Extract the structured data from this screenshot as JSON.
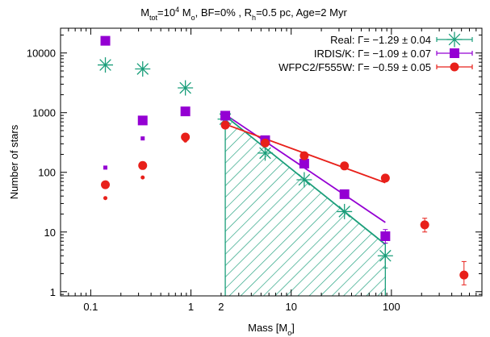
{
  "chart_data": {
    "type": "scatter",
    "title": {
      "parts": [
        {
          "text": "M"
        },
        {
          "text": "tot",
          "sub": true
        },
        {
          "text": "=10"
        },
        {
          "text": "4",
          "sup": true
        },
        {
          "text": " M"
        },
        {
          "text": "o",
          "sub": true
        },
        {
          "text": ", BF=0% , R"
        },
        {
          "text": "h",
          "sub": true
        },
        {
          "text": "=0.5 pc, Age=2 Myr"
        }
      ]
    },
    "xlabel": {
      "parts": [
        {
          "text": "Mass [M"
        },
        {
          "text": "o",
          "sub": true
        },
        {
          "text": "]"
        }
      ]
    },
    "ylabel": "Number of stars",
    "x_scale": "log",
    "y_scale": "log",
    "xlim": [
      0.05,
      800
    ],
    "ylim": [
      0.85,
      26000
    ],
    "x_ticks": [
      {
        "value": 0.1,
        "label": "0.1"
      },
      {
        "value": 1,
        "label": "1"
      },
      {
        "value": 2,
        "label": "2"
      },
      {
        "value": 10,
        "label": "10"
      },
      {
        "value": 100,
        "label": "100"
      }
    ],
    "y_ticks": [
      {
        "value": 1,
        "label": "1"
      },
      {
        "value": 10,
        "label": "10"
      },
      {
        "value": 100,
        "label": "100"
      },
      {
        "value": 1000,
        "label": "1000"
      },
      {
        "value": 10000,
        "label": "10000"
      }
    ],
    "legend_position": "top-right",
    "series": [
      {
        "name": "Real: Γ= −1.29 ± 0.04",
        "color": "#1a9e7a",
        "marker": "asterisk",
        "points": [
          {
            "x": 0.14,
            "y": 6300
          },
          {
            "x": 0.33,
            "y": 5400
          },
          {
            "x": 0.88,
            "y": 2600
          },
          {
            "x": 2.2,
            "y": 780
          },
          {
            "x": 5.5,
            "y": 210
          },
          {
            "x": 13.5,
            "y": 75
          },
          {
            "x": 34,
            "y": 22
          },
          {
            "x": 87,
            "y": 4,
            "err": [
              2.5,
              6.5
            ]
          }
        ],
        "fit": {
          "x": [
            2.2,
            87
          ],
          "y": [
            880,
            6.2
          ]
        }
      },
      {
        "name": "IRDIS/K: Γ= −1.09 ± 0.07",
        "color": "#9400d3",
        "marker": "square",
        "points": [
          {
            "x": 0.14,
            "y": 16000
          },
          {
            "x": 0.33,
            "y": 740
          },
          {
            "x": 0.88,
            "y": 1050
          },
          {
            "x": 2.2,
            "y": 890
          },
          {
            "x": 5.5,
            "y": 345
          },
          {
            "x": 13.5,
            "y": 140
          },
          {
            "x": 34,
            "y": 43
          },
          {
            "x": 87,
            "y": 8.5,
            "err": [
              6.5,
              11
            ]
          }
        ],
        "fit": {
          "x": [
            2.2,
            87
          ],
          "y": [
            930,
            14.5
          ]
        }
      },
      {
        "name": "WFPC2/F555W: Γ= −0.59 ± 0.05",
        "color": "#e8201a",
        "marker": "circle",
        "points": [
          {
            "x": 0.14,
            "y": 62
          },
          {
            "x": 0.33,
            "y": 130
          },
          {
            "x": 0.88,
            "y": 390
          },
          {
            "x": 2.2,
            "y": 620
          },
          {
            "x": 5.5,
            "y": 310
          },
          {
            "x": 13.5,
            "y": 190
          },
          {
            "x": 34,
            "y": 128
          },
          {
            "x": 87,
            "y": 80
          },
          {
            "x": 215,
            "y": 13.2,
            "err": [
              10,
              17
            ]
          },
          {
            "x": 530,
            "y": 1.9,
            "err": [
              1.3,
              3.2
            ]
          }
        ],
        "fit": {
          "x": [
            2.2,
            87
          ],
          "y": [
            640,
            67
          ]
        }
      }
    ],
    "small_markers": [
      {
        "color": "#9400d3",
        "marker": "square",
        "points": [
          {
            "x": 0.14,
            "y": 120
          },
          {
            "x": 0.33,
            "y": 370
          },
          {
            "x": 0.88,
            "y": 1000
          }
        ]
      },
      {
        "color": "#e8201a",
        "marker": "circle",
        "points": [
          {
            "x": 0.14,
            "y": 37
          },
          {
            "x": 0.33,
            "y": 82
          },
          {
            "x": 0.88,
            "y": 340
          }
        ]
      }
    ],
    "hatched_region": {
      "x": [
        2.2,
        87
      ],
      "upper_y": [
        880,
        6.2
      ],
      "color": "#1a9e7a"
    }
  }
}
